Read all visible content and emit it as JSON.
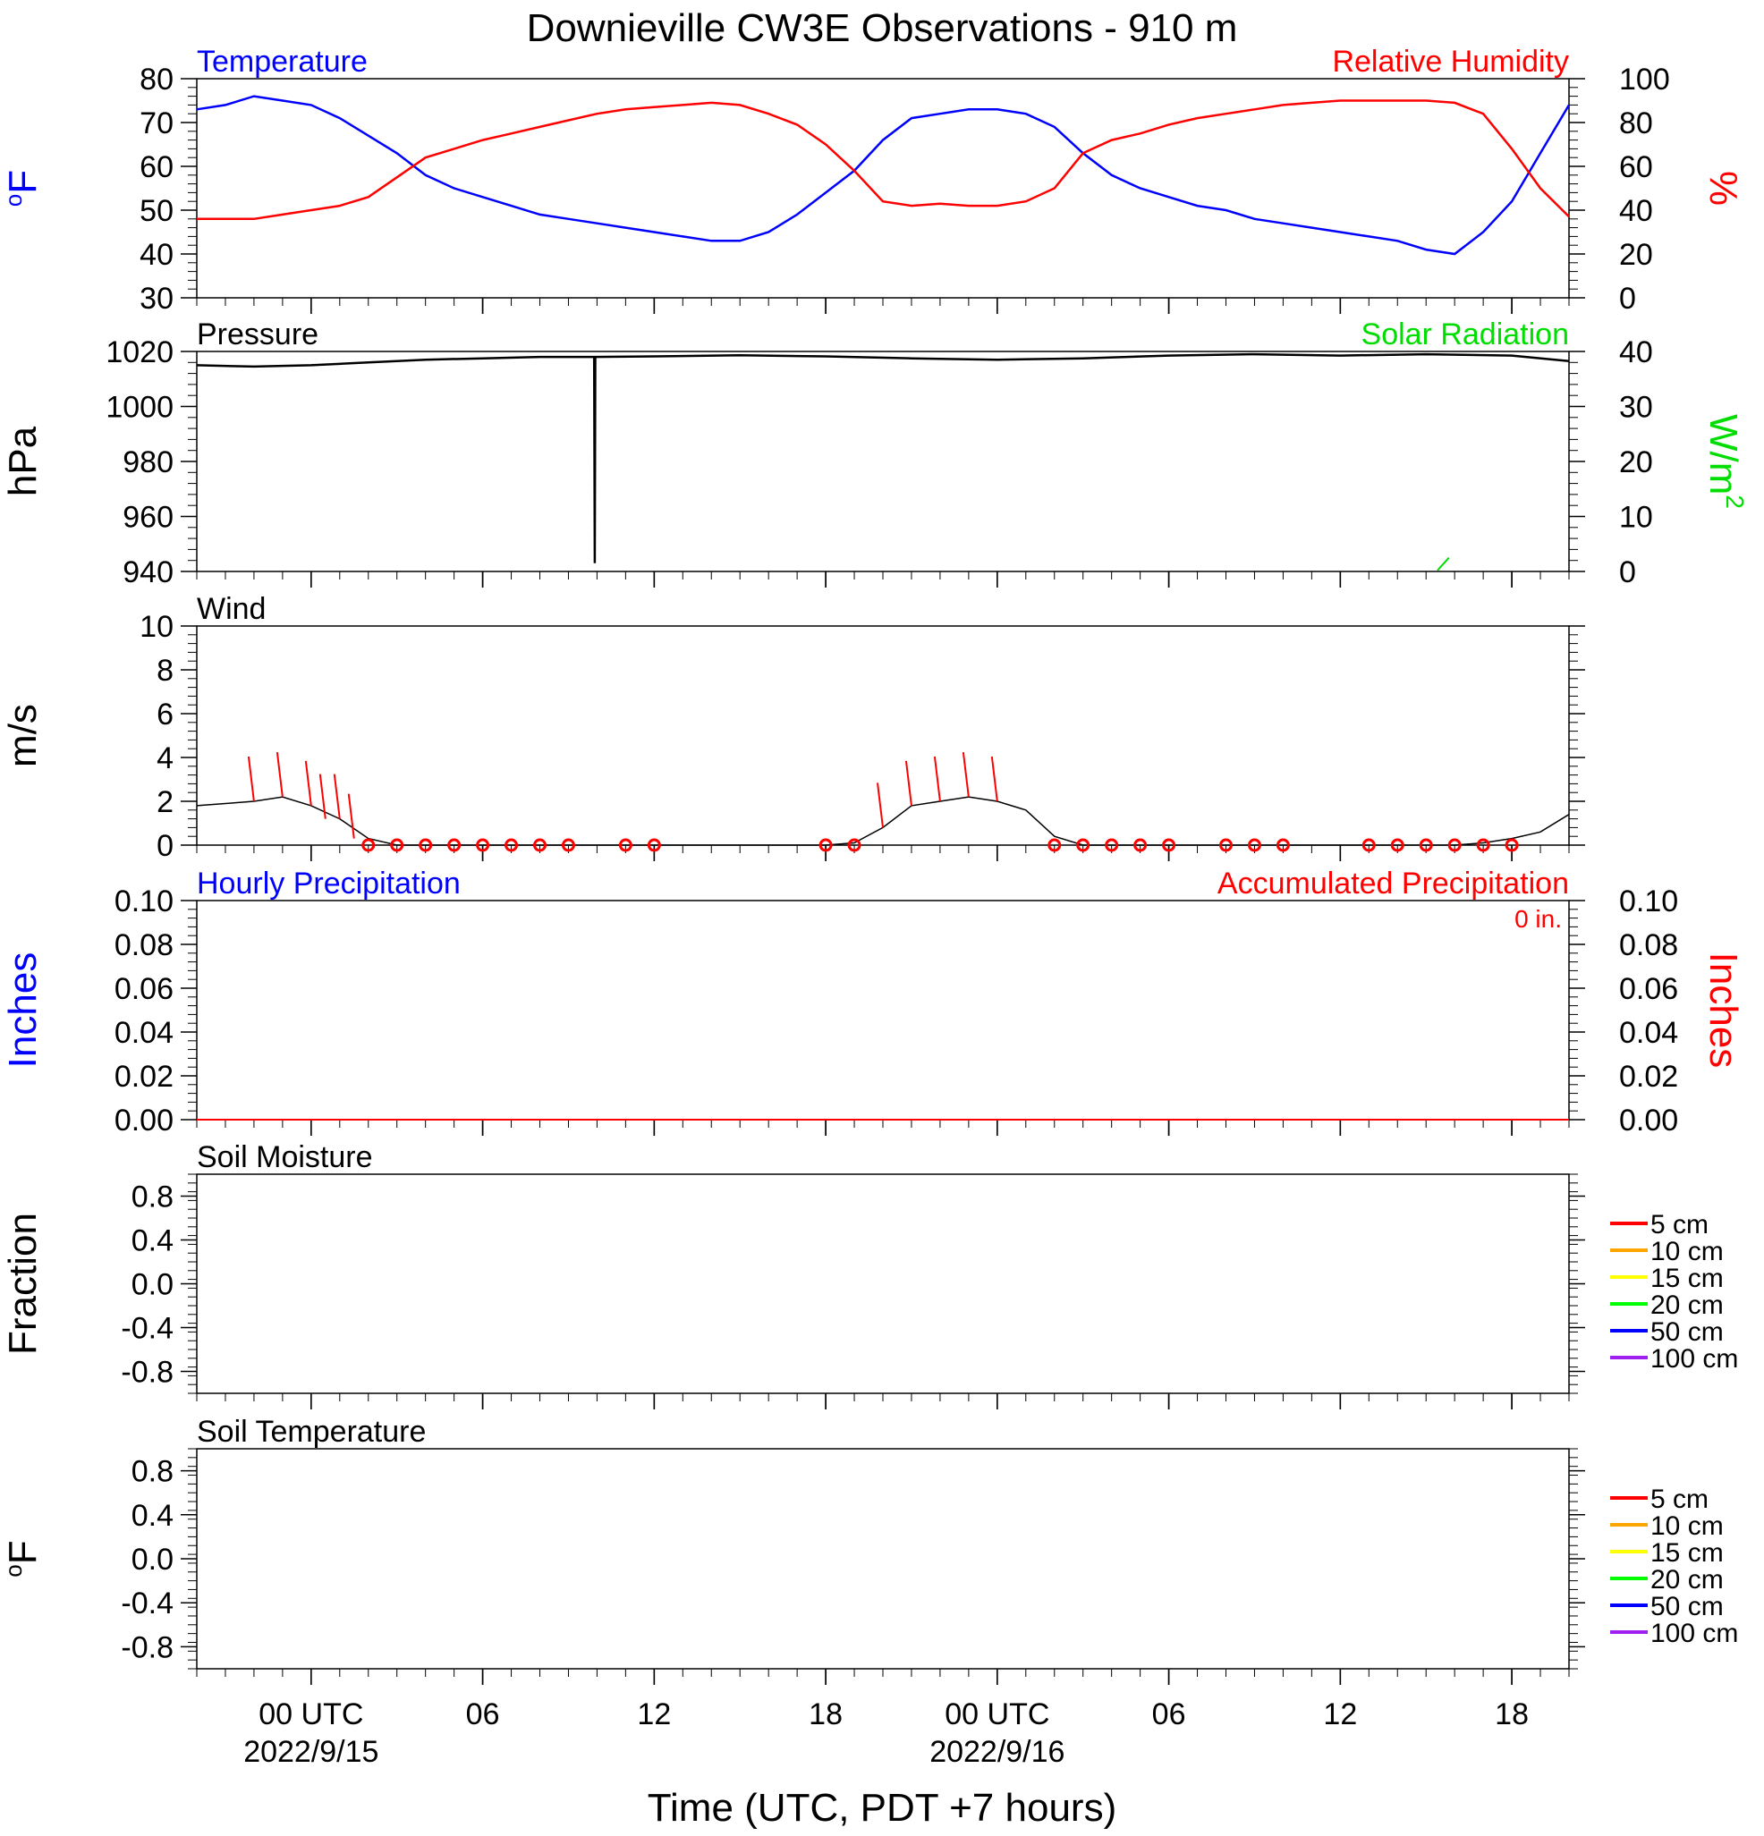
{
  "title": "Downieville CW3E Observations - 910 m",
  "xaxis_title": "Time (UTC, PDT +7 hours)",
  "colors": {
    "temperature": "#0000ff",
    "humidity": "#ff0000",
    "pressure": "#000000",
    "solar": "#00dd00",
    "wind": "#000000",
    "wind_barb": "#ff0000",
    "precip_hourly": "#0000ff",
    "precip_accum": "#ff0000",
    "soil_5": "#ff0000",
    "soil_10": "#ffa500",
    "soil_15": "#ffff00",
    "soil_20": "#00ff00",
    "soil_50": "#0000ff",
    "soil_100": "#a020f0"
  },
  "x_ticks": [
    {
      "hour": 0,
      "label": "00 UTC",
      "date": "2022/9/15"
    },
    {
      "hour": 6,
      "label": "06",
      "date": ""
    },
    {
      "hour": 12,
      "label": "12",
      "date": ""
    },
    {
      "hour": 18,
      "label": "18",
      "date": ""
    },
    {
      "hour": 24,
      "label": "00 UTC",
      "date": "2022/9/16"
    },
    {
      "hour": 30,
      "label": "06",
      "date": ""
    },
    {
      "hour": 36,
      "label": "12",
      "date": ""
    },
    {
      "hour": 42,
      "label": "18",
      "date": ""
    }
  ],
  "panels": {
    "temp_rh": {
      "left_title": "Temperature",
      "right_title": "Relative Humidity",
      "left_unit": "oF",
      "right_unit": "%",
      "left_ticks": [
        "30",
        "40",
        "50",
        "60",
        "70",
        "80"
      ],
      "right_ticks": [
        "0",
        "20",
        "40",
        "60",
        "80",
        "100"
      ]
    },
    "pressure": {
      "left_title": "Pressure",
      "right_title": "Solar Radiation",
      "left_unit": "hPa",
      "right_unit": "W/m",
      "right_unit_sup": "2",
      "left_ticks": [
        "940",
        "960",
        "980",
        "1000",
        "1020"
      ],
      "right_ticks": [
        "0",
        "10",
        "20",
        "30",
        "40"
      ]
    },
    "wind": {
      "left_title": "Wind",
      "left_unit": "m/s",
      "left_ticks": [
        "0",
        "2",
        "4",
        "6",
        "8",
        "10"
      ]
    },
    "precip": {
      "left_title": "Hourly Precipitation",
      "right_title": "Accumulated Precipitation",
      "accum_label": "0 in.",
      "left_unit": "Inches",
      "right_unit": "Inches",
      "left_ticks": [
        "0.00",
        "0.02",
        "0.04",
        "0.06",
        "0.08",
        "0.10"
      ],
      "right_ticks": [
        "0.00",
        "0.02",
        "0.04",
        "0.06",
        "0.08",
        "0.10"
      ]
    },
    "soil_moisture": {
      "left_title": "Soil Moisture",
      "left_unit": "Fraction",
      "left_ticks": [
        "-0.8",
        "-0.4",
        "0.0",
        "0.4",
        "0.8"
      ],
      "legend": [
        "5 cm",
        "10 cm",
        "15 cm",
        "20 cm",
        "50 cm",
        "100 cm"
      ]
    },
    "soil_temp": {
      "left_title": "Soil Temperature",
      "left_unit": "oF",
      "left_ticks": [
        "-0.8",
        "-0.4",
        "0.0",
        "0.4",
        "0.8"
      ],
      "legend": [
        "5 cm",
        "10 cm",
        "15 cm",
        "20 cm",
        "50 cm",
        "100 cm"
      ]
    }
  },
  "chart_data": [
    {
      "type": "line",
      "title": "Temperature / Relative Humidity",
      "x_unit": "hours since 2022/9/15 00 UTC",
      "xlim": [
        -4,
        44
      ],
      "series": [
        {
          "name": "Temperature",
          "axis": "left",
          "unit": "oF",
          "ylim": [
            30,
            80
          ],
          "x": [
            -4,
            -3,
            -2,
            -1,
            0,
            1,
            2,
            3,
            4,
            5,
            6,
            7,
            8,
            9,
            10,
            11,
            12,
            13,
            14,
            15,
            16,
            17,
            18,
            19,
            20,
            21,
            22,
            23,
            24,
            25,
            26,
            27,
            28,
            29,
            30,
            31,
            32,
            33,
            34,
            35,
            36,
            37,
            38,
            39,
            40,
            41,
            42,
            43,
            44
          ],
          "y": [
            73,
            74,
            76,
            75,
            74,
            71,
            67,
            63,
            58,
            55,
            53,
            51,
            49,
            48,
            47,
            46,
            45,
            44,
            43,
            43,
            45,
            49,
            54,
            59,
            66,
            71,
            72,
            73,
            73,
            72,
            69,
            63,
            58,
            55,
            53,
            51,
            50,
            48,
            47,
            46,
            45,
            44,
            43,
            41,
            40,
            45,
            52,
            63,
            74
          ]
        },
        {
          "name": "Relative Humidity",
          "axis": "right",
          "unit": "%",
          "ylim": [
            0,
            100
          ],
          "x": [
            -4,
            -3,
            -2,
            -1,
            0,
            1,
            2,
            3,
            4,
            5,
            6,
            7,
            8,
            9,
            10,
            11,
            12,
            13,
            14,
            15,
            16,
            17,
            18,
            19,
            20,
            21,
            22,
            23,
            24,
            25,
            26,
            27,
            28,
            29,
            30,
            31,
            32,
            33,
            34,
            35,
            36,
            37,
            38,
            39,
            40,
            41,
            42,
            43,
            44
          ],
          "y": [
            36,
            36,
            36,
            38,
            40,
            42,
            46,
            55,
            64,
            68,
            72,
            75,
            78,
            81,
            84,
            86,
            87,
            88,
            89,
            88,
            84,
            79,
            70,
            58,
            44,
            42,
            43,
            42,
            42,
            44,
            50,
            66,
            72,
            75,
            79,
            82,
            84,
            86,
            88,
            89,
            90,
            90,
            90,
            90,
            89,
            84,
            68,
            50,
            37
          ]
        }
      ]
    },
    {
      "type": "line",
      "title": "Pressure / Solar Radiation",
      "x_unit": "hours since 2022/9/15 00 UTC",
      "xlim": [
        -4,
        44
      ],
      "series": [
        {
          "name": "Pressure",
          "axis": "left",
          "unit": "hPa",
          "ylim": [
            940,
            1020
          ],
          "x": [
            -4,
            -2,
            0,
            2,
            4,
            6,
            8,
            9.9,
            9.92,
            9.94,
            12,
            15,
            18,
            21,
            24,
            27,
            30,
            33,
            36,
            39,
            42,
            44
          ],
          "y": [
            1015,
            1014.5,
            1015,
            1016,
            1017,
            1017.5,
            1018,
            1018,
            943,
            1018,
            1018.2,
            1018.6,
            1018.2,
            1017.5,
            1017,
            1017.5,
            1018.5,
            1019,
            1018.5,
            1019,
            1018.5,
            1016.5
          ]
        },
        {
          "name": "Solar Radiation",
          "axis": "right",
          "unit": "W/m2",
          "ylim": [
            0,
            40
          ],
          "x": [
            39.4,
            39.8
          ],
          "y": [
            0.2,
            2.5
          ]
        }
      ]
    },
    {
      "type": "line",
      "title": "Wind",
      "x_unit": "hours since 2022/9/15 00 UTC",
      "xlim": [
        -4,
        44
      ],
      "ylim": [
        0,
        10
      ],
      "series": [
        {
          "name": "Wind",
          "unit": "m/s",
          "x": [
            -4,
            -3,
            -2,
            -1,
            0,
            1,
            2,
            3,
            4,
            5,
            6,
            7,
            8,
            9,
            10,
            11,
            12,
            13,
            14,
            15,
            16,
            17,
            18,
            19,
            20,
            21,
            22,
            23,
            24,
            25,
            26,
            27,
            28,
            29,
            30,
            31,
            32,
            33,
            34,
            35,
            36,
            37,
            38,
            39,
            40,
            41,
            42,
            43,
            44
          ],
          "y": [
            1.8,
            1.9,
            2.0,
            2.2,
            1.8,
            1.2,
            0.3,
            0,
            0,
            0,
            0,
            0,
            0,
            0,
            0,
            0,
            0,
            0,
            0,
            0,
            0,
            0,
            0,
            0.1,
            0.8,
            1.8,
            2.0,
            2.2,
            2.0,
            1.6,
            0.4,
            0,
            0,
            0,
            0,
            0,
            0,
            0,
            0,
            0,
            0,
            0,
            0,
            0,
            0,
            0.1,
            0.3,
            0.6,
            1.4
          ]
        }
      ],
      "calm_markers_hours": [
        2,
        3,
        4,
        5,
        6,
        7,
        8,
        9,
        11,
        12,
        18,
        19,
        26,
        27,
        28,
        29,
        30,
        32,
        33,
        34,
        37,
        38,
        39,
        40,
        41,
        42
      ],
      "barbs_hours": [
        -2,
        -1,
        0,
        0.5,
        1,
        1.5,
        20,
        21,
        22,
        23,
        24
      ]
    },
    {
      "type": "line",
      "title": "Hourly Precipitation / Accumulated Precipitation",
      "x_unit": "hours since 2022/9/15 00 UTC",
      "xlim": [
        -4,
        44
      ],
      "series": [
        {
          "name": "Hourly Precipitation",
          "axis": "left",
          "unit": "in",
          "ylim": [
            0,
            0.1
          ],
          "x": [
            -4,
            44
          ],
          "y": [
            0,
            0
          ]
        },
        {
          "name": "Accumulated Precipitation",
          "axis": "right",
          "unit": "in",
          "ylim": [
            0,
            0.1
          ],
          "x": [
            -4,
            44
          ],
          "y": [
            0,
            0
          ]
        }
      ]
    },
    {
      "type": "line",
      "title": "Soil Moisture",
      "ylim": [
        -1,
        1
      ],
      "series": []
    },
    {
      "type": "line",
      "title": "Soil Temperature",
      "ylim": [
        -1,
        1
      ],
      "series": []
    }
  ]
}
